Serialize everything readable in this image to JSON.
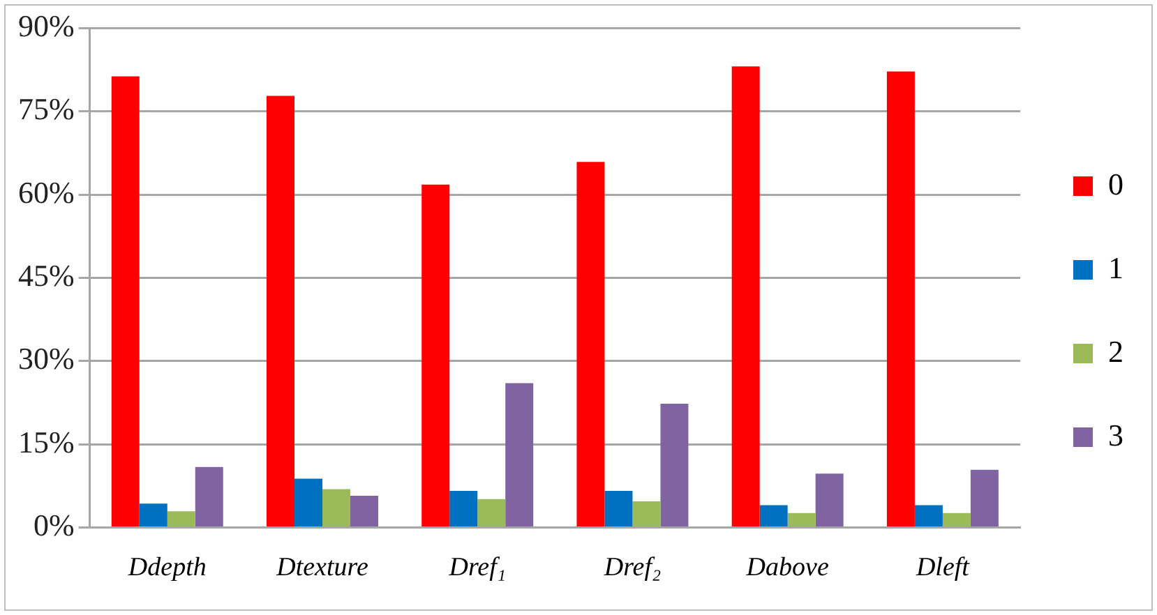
{
  "chart_data": {
    "type": "bar",
    "categories": [
      "Ddepth",
      "Dtexture",
      "Dref₁",
      "Dref₂",
      "Dabove",
      "Dleft"
    ],
    "series": [
      {
        "name": "0",
        "color": "#ff0000",
        "values": [
          81.3,
          77.8,
          61.8,
          65.9,
          83.1,
          82.2
        ]
      },
      {
        "name": "1",
        "color": "#0070c0",
        "values": [
          4.3,
          8.8,
          6.6,
          6.6,
          4.0,
          4.0
        ]
      },
      {
        "name": "2",
        "color": "#9bbb59",
        "values": [
          2.9,
          6.9,
          5.1,
          4.7,
          2.6,
          2.6
        ]
      },
      {
        "name": "3",
        "color": "#8064a2",
        "values": [
          10.9,
          5.7,
          26.0,
          22.3,
          9.7,
          10.4
        ]
      }
    ],
    "ylim": [
      0,
      90
    ],
    "yticks": [
      {
        "value": 0,
        "label": "0%"
      },
      {
        "value": 15,
        "label": "15%"
      },
      {
        "value": 30,
        "label": "30%"
      },
      {
        "value": 45,
        "label": "45%"
      },
      {
        "value": 60,
        "label": "60%"
      },
      {
        "value": 75,
        "label": "75%"
      },
      {
        "value": 90,
        "label": "90%"
      }
    ],
    "grid": "y",
    "legend": "right"
  }
}
